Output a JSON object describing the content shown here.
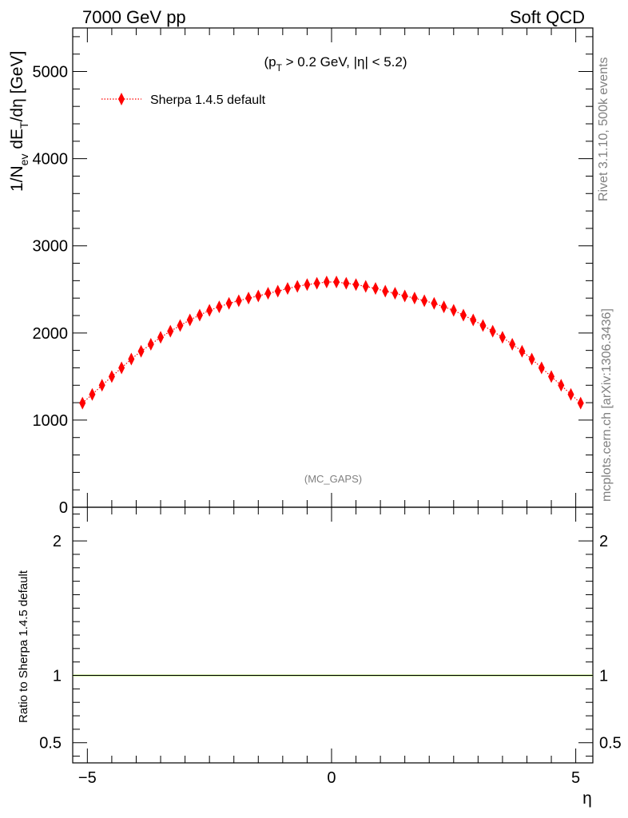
{
  "header": {
    "left_title": "7000 GeV pp",
    "right_title": "Soft QCD"
  },
  "side_labels": {
    "rivet": "Rivet 3.1.10,  500k events",
    "source": "mcplots.cern.ch [arXiv:1306.3436]"
  },
  "chart_data": [
    {
      "type": "scatter",
      "title": "(p_T > 0.2 GeV, |η| < 5.2)",
      "title_parts": {
        "pre": "(p",
        "sub": "T",
        "post": " > 0.2 GeV, |η| < 5.2)"
      },
      "ylabel_parts": {
        "a": "1/N",
        "a_sub": "ev",
        "b": " dE",
        "b_sub": "T",
        "c": "/dη [GeV]"
      },
      "xlabel": "η",
      "watermark": "(MC_GAPS)",
      "xlim": [
        -5.3,
        5.35
      ],
      "ylim": [
        0,
        5500
      ],
      "yticks": [
        {
          "v": 0,
          "label": "0"
        },
        {
          "v": 1000,
          "label": "1000"
        },
        {
          "v": 2000,
          "label": "2000"
        },
        {
          "v": 3000,
          "label": "3000"
        },
        {
          "v": 4000,
          "label": "4000"
        },
        {
          "v": 5000,
          "label": "5000"
        }
      ],
      "legend": {
        "position": "top-left",
        "entries": [
          "Sherpa 1.4.5 default"
        ]
      },
      "colors": {
        "marker": "#ff0000"
      },
      "series": [
        {
          "name": "Sherpa 1.4.5 default",
          "x": [
            -5.1,
            -4.9,
            -4.7,
            -4.5,
            -4.3,
            -4.1,
            -3.9,
            -3.7,
            -3.5,
            -3.3,
            -3.1,
            -2.9,
            -2.7,
            -2.5,
            -2.3,
            -2.1,
            -1.9,
            -1.7,
            -1.5,
            -1.3,
            -1.1,
            -0.9,
            -0.7,
            -0.5,
            -0.3,
            -0.1,
            0.1,
            0.3,
            0.5,
            0.7,
            0.9,
            1.1,
            1.3,
            1.5,
            1.7,
            1.9,
            2.1,
            2.3,
            2.5,
            2.7,
            2.9,
            3.1,
            3.3,
            3.5,
            3.7,
            3.9,
            4.1,
            4.3,
            4.5,
            4.7,
            4.9,
            5.1
          ],
          "y": [
            1195,
            1295,
            1400,
            1500,
            1600,
            1700,
            1790,
            1870,
            1950,
            2020,
            2085,
            2150,
            2205,
            2260,
            2300,
            2340,
            2370,
            2400,
            2425,
            2455,
            2480,
            2510,
            2535,
            2555,
            2570,
            2585,
            2585,
            2570,
            2555,
            2535,
            2510,
            2480,
            2455,
            2425,
            2400,
            2370,
            2340,
            2300,
            2260,
            2205,
            2150,
            2085,
            2020,
            1950,
            1870,
            1790,
            1700,
            1600,
            1500,
            1400,
            1295,
            1195
          ]
        }
      ]
    },
    {
      "type": "line",
      "ylabel": "Ratio to Sherpa 1.4.5 default",
      "xlabel": "η",
      "xlim": [
        -5.3,
        5.35
      ],
      "ylim": [
        0.35,
        2.25
      ],
      "xticks": [
        {
          "v": -5,
          "label": "−5"
        },
        {
          "v": 0,
          "label": "0"
        },
        {
          "v": 5,
          "label": "5"
        }
      ],
      "yticks": [
        {
          "v": 0.5,
          "label": "0.5"
        },
        {
          "v": 1,
          "label": "1"
        },
        {
          "v": 2,
          "label": "2"
        }
      ],
      "colors": {
        "line": "#000000",
        "band": "#7fd000"
      },
      "series": [
        {
          "name": "Sherpa 1.4.5 default",
          "x": [
            -5.3,
            5.35
          ],
          "y": [
            1,
            1
          ]
        }
      ]
    }
  ]
}
